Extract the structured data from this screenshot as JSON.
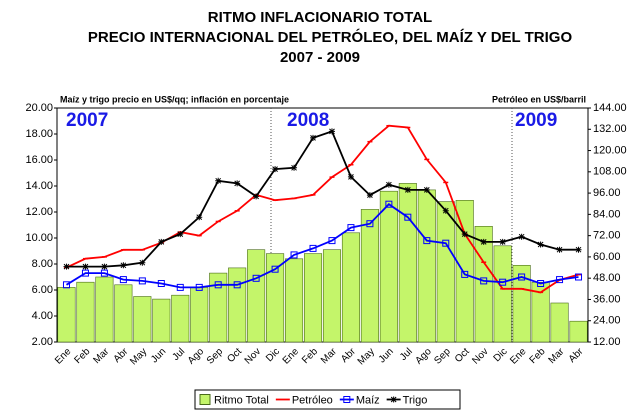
{
  "chart_data": {
    "type": "combo",
    "title": [
      "RITMO INFLACIONARIO TOTAL",
      "PRECIO INTERNACIONAL DEL PETRÓLEO, DEL MAÍZ Y DEL TRIGO",
      "2007 - 2009"
    ],
    "y_label": "Maíz y trigo precio en US$/qq; inflación en porcentaje",
    "y2_label": "Petróleo en US$/barril",
    "annotations": [
      "2007",
      "2008",
      "2009"
    ],
    "categories": [
      "Ene",
      "Feb",
      "Mar",
      "Abr",
      "May",
      "Jun",
      "Jul",
      "Ago",
      "Sep",
      "Oct",
      "Nov",
      "Dic",
      "Ene",
      "Feb",
      "Mar",
      "Abr",
      "May",
      "Jun",
      "Jul",
      "Ago",
      "Sep",
      "Oct",
      "Nov",
      "Dic",
      "Ene",
      "Feb",
      "Mar",
      "Abr"
    ],
    "series": [
      {
        "name": "Ritmo Total",
        "type": "bar",
        "color": "#c4f56a",
        "values": [
          6.2,
          6.6,
          7.0,
          6.4,
          5.5,
          5.3,
          5.6,
          6.2,
          7.3,
          7.7,
          9.1,
          8.8,
          8.4,
          8.8,
          9.1,
          10.4,
          12.2,
          13.6,
          14.2,
          13.7,
          12.8,
          12.9,
          10.9,
          9.4,
          7.9,
          6.6,
          5.0,
          3.6
        ]
      },
      {
        "name": "Petróleo",
        "type": "line",
        "axis": "y2",
        "color": "#ff0000",
        "values": [
          54,
          59,
          60,
          64,
          64,
          68,
          74,
          72,
          80,
          86,
          95,
          92,
          93,
          95,
          105,
          112,
          125,
          134,
          133,
          115,
          102,
          73,
          57,
          42,
          42,
          40,
          47,
          50
        ]
      },
      {
        "name": "Maíz",
        "type": "line",
        "marker": "square",
        "color": "#0000ff",
        "values": [
          6.4,
          7.3,
          7.3,
          6.8,
          6.7,
          6.5,
          6.2,
          6.2,
          6.4,
          6.4,
          6.9,
          7.6,
          8.7,
          9.2,
          9.8,
          10.8,
          11.1,
          12.6,
          11.6,
          9.8,
          9.6,
          7.2,
          6.7,
          6.6,
          7.0,
          6.5,
          6.8,
          7.0
        ]
      },
      {
        "name": "Trigo",
        "type": "line",
        "marker": "star",
        "color": "#000000",
        "values": [
          7.8,
          7.8,
          7.8,
          7.9,
          8.1,
          9.7,
          10.3,
          11.6,
          14.4,
          14.2,
          13.2,
          15.3,
          15.4,
          17.7,
          18.2,
          14.7,
          13.3,
          14.1,
          13.7,
          13.7,
          12.1,
          10.3,
          9.7,
          9.7,
          10.1,
          9.5,
          9.1,
          9.1
        ]
      }
    ],
    "ylim": [
      2,
      20
    ],
    "yticks": [
      {
        "value": 2,
        "label": "2.00"
      },
      {
        "value": 4,
        "label": "4.00"
      },
      {
        "value": 6,
        "label": "6.00"
      },
      {
        "value": 8,
        "label": "8.00"
      },
      {
        "value": 10,
        "label": "10.00"
      },
      {
        "value": 12,
        "label": "12.00"
      },
      {
        "value": 14,
        "label": "14.00"
      },
      {
        "value": 16,
        "label": "16.00"
      },
      {
        "value": 18,
        "label": "18.00"
      },
      {
        "value": 20,
        "label": "20.00"
      }
    ],
    "y2lim": [
      12,
      144
    ],
    "y2ticks": [
      {
        "value": 12,
        "label": "12.00"
      },
      {
        "value": 24,
        "label": "24.00"
      },
      {
        "value": 36,
        "label": "36.00"
      },
      {
        "value": 48,
        "label": "48.00"
      },
      {
        "value": 60,
        "label": "60.00"
      },
      {
        "value": 72,
        "label": "72.00"
      },
      {
        "value": 84,
        "label": "84.00"
      },
      {
        "value": 96,
        "label": "96.00"
      },
      {
        "value": 108,
        "label": "108.00"
      },
      {
        "value": 120,
        "label": "120.00"
      },
      {
        "value": 132,
        "label": "132.00"
      },
      {
        "value": 144,
        "label": "144.00"
      }
    ],
    "legend": "bottom"
  }
}
